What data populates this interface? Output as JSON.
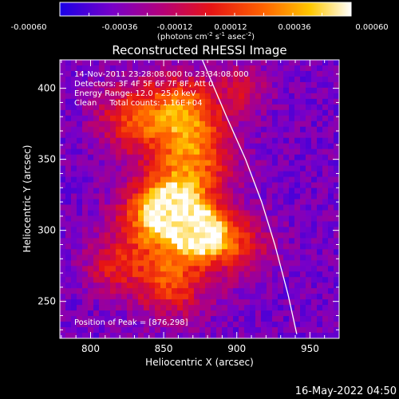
{
  "chart_data": {
    "type": "heatmap",
    "title": "Reconstructed RHESSI Image",
    "xlabel": "Heliocentric X (arcsec)",
    "ylabel": "Heliocentric Y (arcsec)",
    "xlim": [
      779,
      970
    ],
    "ylim": [
      224,
      420
    ],
    "x_ticks": [
      "800",
      "850",
      "900",
      "950"
    ],
    "y_ticks": [
      "250",
      "300",
      "350",
      "400"
    ],
    "colorbar": {
      "ticks": [
        "-0.00060",
        "-0.00036",
        "-0.00012",
        "0.00012",
        "0.00036",
        "0.00060"
      ],
      "range": [
        -0.0006,
        0.0006
      ],
      "unit_label": "(photons cm",
      "unit_sup1": "-2",
      "unit_mid": " s",
      "unit_sup2": "-1",
      "unit_mid2": " asec",
      "unit_sup3": "-2",
      "unit_end": ")",
      "colors": [
        "#1a00e6",
        "#7800c8",
        "#b4007a",
        "#e61414",
        "#ff6400",
        "#ffc800",
        "#ffffff"
      ]
    },
    "annotations": [
      "14-Nov-2011 23:28:08.000 to 23:34:08.000",
      "Detectors: 3F 4F 5F 6F 7F 8F, Att 0",
      "Energy Range: 12.0 - 25.0 keV",
      "Clean     Total counts: 1.16E+04"
    ],
    "peak_label": "Position of Peak = [876,298]",
    "peak": [
      876,
      298
    ],
    "limb_curve_x": [
      876,
      893,
      906,
      917,
      926,
      935,
      941
    ],
    "limb_curve_y": [
      421,
      380,
      350,
      320,
      290,
      255,
      227
    ],
    "sources": [
      {
        "x": 876,
        "y": 298,
        "amp": 1.0,
        "sigma": 12
      },
      {
        "x": 858,
        "y": 315,
        "amp": 0.78,
        "sigma": 15
      },
      {
        "x": 842,
        "y": 308,
        "amp": 0.55,
        "sigma": 18
      },
      {
        "x": 870,
        "y": 350,
        "amp": 0.6,
        "sigma": 20
      },
      {
        "x": 865,
        "y": 385,
        "amp": 0.55,
        "sigma": 17
      },
      {
        "x": 830,
        "y": 380,
        "amp": 0.5,
        "sigma": 18
      },
      {
        "x": 855,
        "y": 265,
        "amp": 0.55,
        "sigma": 18
      },
      {
        "x": 900,
        "y": 290,
        "amp": 0.45,
        "sigma": 16
      },
      {
        "x": 905,
        "y": 400,
        "amp": 0.3,
        "sigma": 12
      },
      {
        "x": 815,
        "y": 275,
        "amp": 0.35,
        "sigma": 14
      }
    ]
  },
  "footer_timestamp": "16-May-2022 04:50"
}
